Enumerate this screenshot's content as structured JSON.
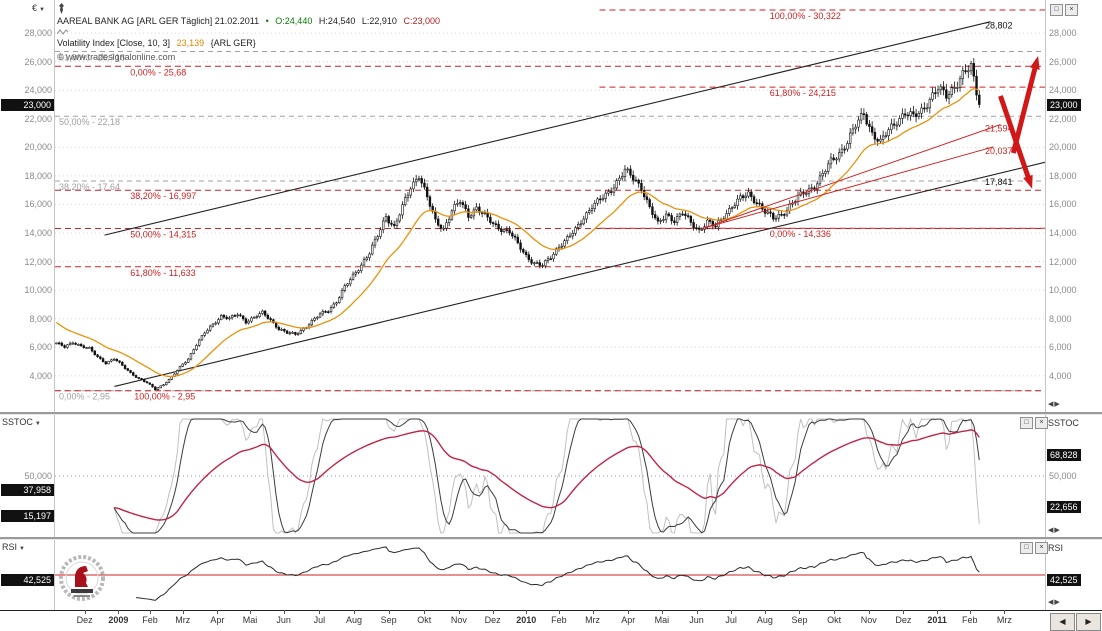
{
  "header": {
    "title": "AAREAL BANK AG [ARL GER  Täglich] 21.02.2011",
    "bullet": "•",
    "open": "O:24,440",
    "high": "H:24,540",
    "low": "L:22,910",
    "close": "C:23,000",
    "indicator": "Volatility Index [Close, 10, 3]",
    "indicator_value": "23,139",
    "indicator_market": "{ARL GER}",
    "copyright": "© www.tradesignalonline.com"
  },
  "panels": {
    "price": {
      "unit": "€"
    },
    "sstoc": {
      "title": "SSTOC"
    },
    "rsi": {
      "title": "RSI"
    }
  },
  "controls": {
    "dropdown": "▼",
    "restore": "□",
    "close": "×",
    "scroll_left": "◀",
    "scroll_right": "▶",
    "scroll_pair": "◀▶"
  },
  "chart_data": {
    "type": "candlestick",
    "title": "AAREAL BANK AG [ARL GER] Täglich",
    "x_labels": [
      {
        "t": "Dez",
        "f": 0.03
      },
      {
        "t": "2009",
        "f": 0.064
      },
      {
        "t": "Feb",
        "f": 0.096
      },
      {
        "t": "Mrz",
        "f": 0.129
      },
      {
        "t": "Apr",
        "f": 0.164
      },
      {
        "t": "Mai",
        "f": 0.197
      },
      {
        "t": "Jun",
        "f": 0.231
      },
      {
        "t": "Jul",
        "f": 0.267
      },
      {
        "t": "Aug",
        "f": 0.302
      },
      {
        "t": "Sep",
        "f": 0.337
      },
      {
        "t": "Okt",
        "f": 0.373
      },
      {
        "t": "Nov",
        "f": 0.408
      },
      {
        "t": "Dez",
        "f": 0.442
      },
      {
        "t": "2010",
        "f": 0.476
      },
      {
        "t": "Feb",
        "f": 0.509
      },
      {
        "t": "Mrz",
        "f": 0.543
      },
      {
        "t": "Apr",
        "f": 0.579
      },
      {
        "t": "Mai",
        "f": 0.613
      },
      {
        "t": "Jun",
        "f": 0.648
      },
      {
        "t": "Jul",
        "f": 0.683
      },
      {
        "t": "Aug",
        "f": 0.717
      },
      {
        "t": "Sep",
        "f": 0.752
      },
      {
        "t": "Okt",
        "f": 0.787
      },
      {
        "t": "Nov",
        "f": 0.822
      },
      {
        "t": "Dez",
        "f": 0.857
      },
      {
        "t": "2011",
        "f": 0.891
      },
      {
        "t": "Feb",
        "f": 0.924
      },
      {
        "t": "Mrz",
        "f": 0.959
      }
    ],
    "y_axis": {
      "top_value": 30322,
      "bottom_value": 1600,
      "ticks": [
        {
          "label": "28,000",
          "value": 28000
        },
        {
          "label": "26,000",
          "value": 26000
        },
        {
          "label": "24,000",
          "value": 24000
        },
        {
          "label": "22,000",
          "value": 22000
        },
        {
          "label": "20,000",
          "value": 20000
        },
        {
          "label": "18,000",
          "value": 18000
        },
        {
          "label": "16,000",
          "value": 16000
        },
        {
          "label": "14,000",
          "value": 14000
        },
        {
          "label": "12,000",
          "value": 12000
        },
        {
          "label": "10,000",
          "value": 10000
        },
        {
          "label": "8,000",
          "value": 8000
        },
        {
          "label": "6,000",
          "value": 6000
        },
        {
          "label": "4,000",
          "value": 4000
        }
      ]
    },
    "last_bar": {
      "date": "21.02.2011",
      "open": 24440,
      "high": 24540,
      "low": 22910,
      "close": 23000
    },
    "price_tag": {
      "label": "23,000",
      "value": 23000
    },
    "series": {
      "weekly_closes": [
        6300,
        6000,
        6350,
        6100,
        5900,
        5300,
        4900,
        5200,
        4700,
        4200,
        3800,
        3500,
        3050,
        3400,
        3900,
        4600,
        5200,
        6200,
        7000,
        7600,
        8200,
        8000,
        8300,
        7800,
        8100,
        8400,
        7900,
        7300,
        7000,
        6900,
        7300,
        7800,
        8300,
        8600,
        9200,
        10200,
        11000,
        11800,
        12600,
        13800,
        15200,
        14400,
        15800,
        17200,
        18100,
        16500,
        14800,
        14300,
        15600,
        16200,
        15200,
        15800,
        15200,
        14600,
        14300,
        14100,
        13200,
        12400,
        11900,
        11700,
        12300,
        13100,
        13600,
        14200,
        15100,
        15900,
        16300,
        16800,
        17600,
        18400,
        17800,
        17200,
        15800,
        14600,
        15300,
        14900,
        15400,
        14700,
        14200,
        14800,
        14400,
        15200,
        15900,
        16400,
        16700,
        16200,
        15500,
        15000,
        15300,
        15900,
        16500,
        16900,
        17300,
        18100,
        19000,
        19600,
        20400,
        21500,
        22400,
        21000,
        20300,
        21200,
        21900,
        22400,
        22100,
        22600,
        23400,
        24100,
        23600,
        24300,
        25100,
        25600,
        23000
      ],
      "data_end_frac": 0.935,
      "volatility_index_last": 23139
    },
    "levels_red": [
      {
        "label": "100,00% - 30,322",
        "value": 30322,
        "from": 0.55,
        "label_x": 0.72
      },
      {
        "label": "0,00% - 25,68",
        "value": 25680,
        "from": 0,
        "label_x": 0.074
      },
      {
        "label": "61,80% - 24,215",
        "value": 24215,
        "from": 0.55,
        "label_x": 0.72
      },
      {
        "label": "38,20% - 16,997",
        "value": 16997,
        "from": 0,
        "label_x": 0.074
      },
      {
        "label": "50,00% - 14,315",
        "value": 14315,
        "from": 0,
        "label_x": 0.074
      },
      {
        "label": "0,00% - 14,336",
        "value": 14336,
        "from": 0.55,
        "label_x": 0.72
      },
      {
        "label": "61,80% - 11,633",
        "value": 11633,
        "from": 0,
        "label_x": 0.074
      },
      {
        "label": "100,00% - 2,95",
        "value": 2950,
        "from": 0,
        "label_x": 0.078
      }
    ],
    "levels_gray": [
      {
        "label": "61,80% - 26,718",
        "value": 26718,
        "label_x": 0.002
      },
      {
        "label": "50,00% - 22,18",
        "value": 22180,
        "label_x": 0.002
      },
      {
        "label": "38,20% - 17,64",
        "value": 17640,
        "label_x": 0.002
      },
      {
        "label": "0,00% - 2,95",
        "value": 2950,
        "label_x": 0.002
      }
    ],
    "right_edge_labels": [
      {
        "label": "28,802",
        "value": 28802,
        "color": "#111111"
      },
      {
        "label": "21,594",
        "value": 21594,
        "color": "#cc2222"
      },
      {
        "label": "20,037",
        "value": 20037,
        "color": "#cc2222"
      },
      {
        "label": "17,841",
        "value": 17841,
        "color": "#111111"
      }
    ],
    "trendlines_black": [
      {
        "x1": 0.05,
        "v1": 13850,
        "x2": 0.945,
        "v2": 28802
      },
      {
        "x1": 0.06,
        "v1": 3250,
        "x2": 1.0,
        "v2": 18950
      }
    ],
    "trendlines_red": [
      {
        "x1": 0.655,
        "v1": 14336,
        "x2": 0.955,
        "v2": 21594
      },
      {
        "x1": 0.655,
        "v1": 14336,
        "x2": 0.948,
        "v2": 20037
      }
    ],
    "arrows": [
      {
        "dir": "up",
        "x1": 0.968,
        "v1": 19600,
        "x2": 0.993,
        "v2": 26400
      },
      {
        "dir": "down",
        "x1": 0.955,
        "v1": 23600,
        "x2": 0.987,
        "v2": 17100
      }
    ],
    "sstoc": {
      "title": "SSTOC",
      "mid_line": 50,
      "left_labels": [
        {
          "label": "50,000",
          "value": 50,
          "tag": false
        },
        {
          "label": "37,958",
          "value": 37.958,
          "tag": true
        },
        {
          "label": "15,197",
          "value": 15.197,
          "tag": true
        }
      ],
      "right_labels": [
        {
          "label": "68,828",
          "value": 68.828,
          "tag": true
        },
        {
          "label": "50,000",
          "value": 50,
          "tag": false
        },
        {
          "label": "22,656",
          "value": 22.656,
          "tag": true
        }
      ]
    },
    "rsi": {
      "title": "RSI",
      "level_line": 50,
      "left_labels": [
        {
          "label": "42,525",
          "value": 42.525,
          "tag": true
        }
      ],
      "right_labels": [
        {
          "label": "42,525",
          "value": 42.525,
          "tag": true
        }
      ]
    },
    "colors": {
      "candle": "#111111",
      "volatility": "#e8920c",
      "fib_red": "#cc2222",
      "fib_gray": "#a0a0a0",
      "trend": "#222222",
      "arrow": "#d01818",
      "grid": "#d8d8d8",
      "sstoc_fast": "#c0c0c0",
      "sstoc_slow": "#3c3c3c",
      "sstoc_signal": "#c02545",
      "rsi_line": "#2a2a2a",
      "rsi_level": "#cc2222"
    }
  }
}
